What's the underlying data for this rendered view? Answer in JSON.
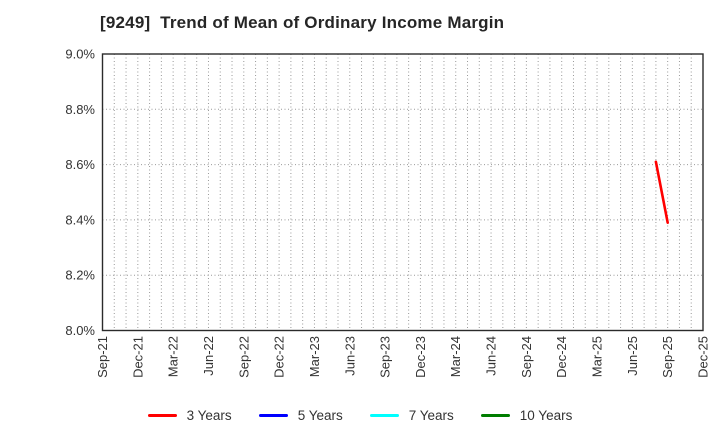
{
  "chart_data": {
    "type": "line",
    "title": "[9249]  Trend of Mean of Ordinary Income Margin",
    "xlabel": "",
    "ylabel": "",
    "ylim": [
      8.0,
      9.0
    ],
    "ytick_labels": [
      "8.0%",
      "8.2%",
      "8.4%",
      "8.6%",
      "8.8%",
      "9.0%"
    ],
    "grid": true,
    "legend_position": "bottom-center",
    "x_axis": {
      "start_label": "Sep-21",
      "end_label": "Dec-25",
      "minor_gridline_unit": "month",
      "months_total": 51,
      "tick_every_months": 3,
      "tick_labels": [
        "Sep-21",
        "Dec-21",
        "Mar-22",
        "Jun-22",
        "Sep-22",
        "Dec-22",
        "Mar-23",
        "Jun-23",
        "Sep-23",
        "Dec-23",
        "Mar-24",
        "Jun-24",
        "Sep-24",
        "Dec-24",
        "Mar-25",
        "Jun-25",
        "Sep-25",
        "Dec-25"
      ]
    },
    "series": [
      {
        "name": "3 Years",
        "color": "#ff0000",
        "points": [
          {
            "x_label": "Aug-25",
            "month_index": 47,
            "value": 8.61
          },
          {
            "x_label": "Sep-25",
            "month_index": 48,
            "value": 8.39
          }
        ]
      },
      {
        "name": "5 Years",
        "color": "#0000ff",
        "points": []
      },
      {
        "name": "7 Years",
        "color": "#00ffff",
        "points": []
      },
      {
        "name": "10 Years",
        "color": "#007d00",
        "points": []
      }
    ],
    "colors": {
      "grid": "#999999",
      "axis_border": "#2b2b2b",
      "tick_text": "#333333",
      "title_text": "#262626",
      "background": "#ffffff"
    }
  }
}
